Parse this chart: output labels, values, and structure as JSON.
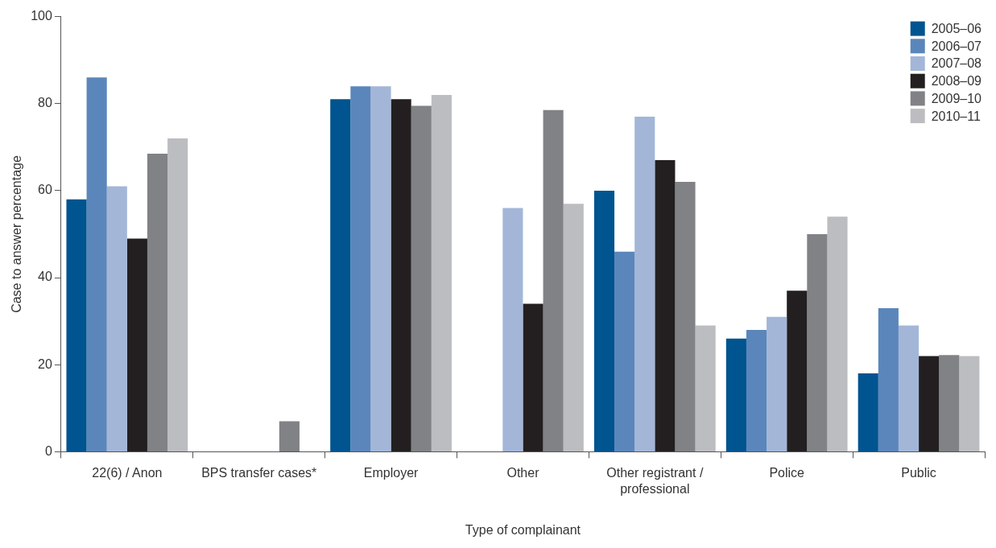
{
  "chart_data": {
    "type": "bar",
    "xlabel": "Type of complainant",
    "ylabel": "Case to answer percentage",
    "categories": [
      "22(6) / Anon",
      "BPS transfer cases*",
      "Employer",
      "Other",
      "Other registrant / professional",
      "Police",
      "Public"
    ],
    "series": [
      {
        "name": "2005–06",
        "color": "#00548f",
        "values": [
          58,
          0,
          81,
          0,
          60,
          26,
          18
        ]
      },
      {
        "name": "2006–07",
        "color": "#5b86bb",
        "values": [
          86,
          0,
          84,
          0,
          46,
          28,
          33
        ]
      },
      {
        "name": "2007–08",
        "color": "#a3b6d8",
        "values": [
          61,
          0,
          84,
          56,
          77,
          31,
          29
        ]
      },
      {
        "name": "2008–09",
        "color": "#231f20",
        "values": [
          49,
          0,
          81,
          34,
          67,
          37,
          22
        ]
      },
      {
        "name": "2009–10",
        "color": "#808285",
        "values": [
          68.5,
          7,
          79.5,
          78.5,
          62,
          50,
          22.2
        ]
      },
      {
        "name": "2010–11",
        "color": "#bcbdc0",
        "values": [
          72,
          0,
          82,
          57,
          29,
          54,
          22
        ]
      }
    ],
    "ylim": [
      0,
      100
    ],
    "yticks": [
      0,
      20,
      40,
      60,
      80,
      100
    ],
    "grid": false,
    "legend": "top right"
  }
}
